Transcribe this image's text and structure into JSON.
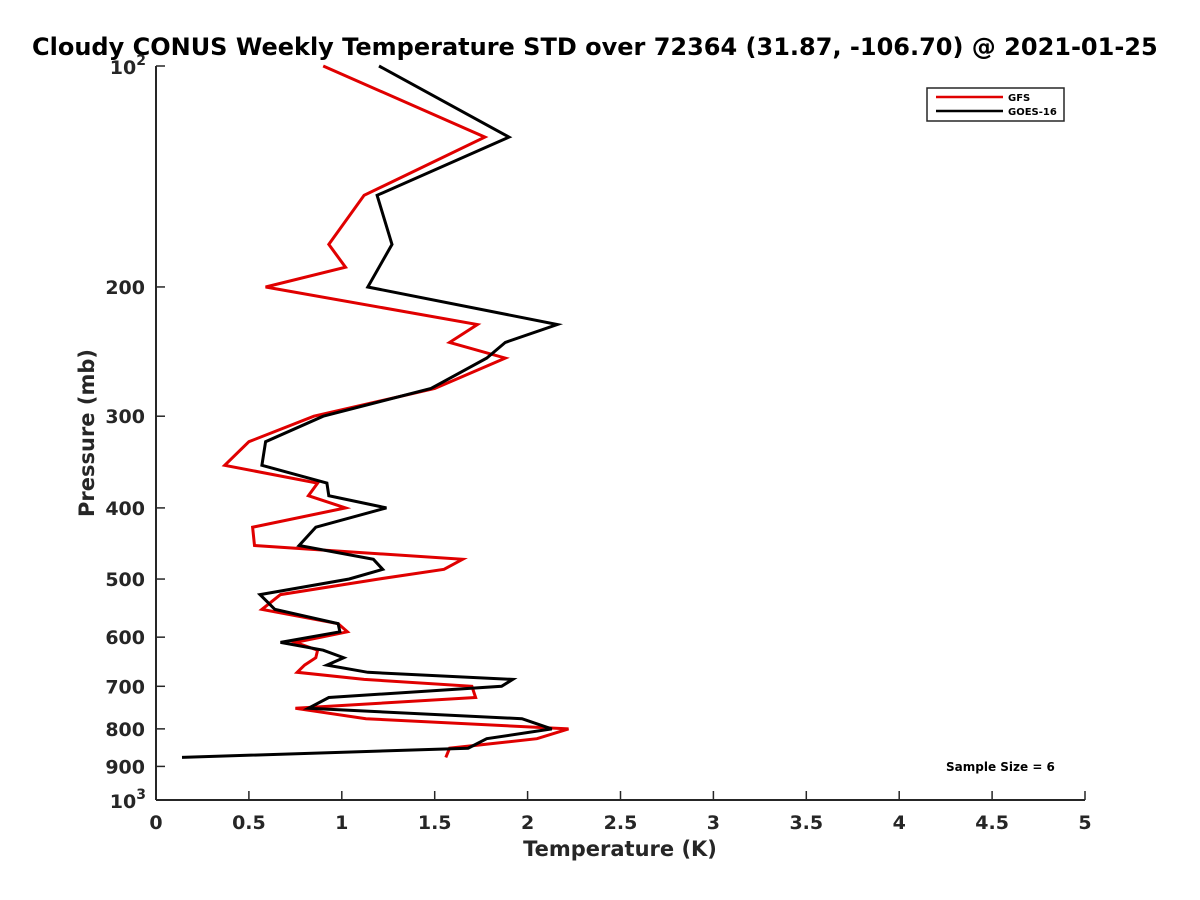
{
  "chart_data": {
    "type": "line",
    "title": "Cloudy CONUS Weekly Temperature STD over 72364 (31.87, -106.70) @ 2021-01-25",
    "xlabel": "Temperature (K)",
    "ylabel": "Pressure (mb)",
    "xlim": [
      0,
      5
    ],
    "ylim": [
      100,
      1000
    ],
    "yscale": "log",
    "yreversed": true,
    "xticks": [
      "0",
      "0.5",
      "1",
      "1.5",
      "2",
      "2.5",
      "3",
      "3.5",
      "4",
      "4.5",
      "5"
    ],
    "yticks": [
      {
        "value": 100,
        "base": "10",
        "exp": "2"
      },
      {
        "value": 200,
        "label": "200"
      },
      {
        "value": 300,
        "label": "300"
      },
      {
        "value": 400,
        "label": "400"
      },
      {
        "value": 500,
        "label": "500"
      },
      {
        "value": 600,
        "label": "600"
      },
      {
        "value": 700,
        "label": "700"
      },
      {
        "value": 800,
        "label": "800"
      },
      {
        "value": 900,
        "label": "900"
      },
      {
        "value": 1000,
        "base": "10",
        "exp": "3"
      }
    ],
    "grid": false,
    "legend_position": "top-right",
    "annotation": "Sample Size = 6",
    "series": [
      {
        "name": "GFS",
        "color": "#e00000",
        "points": [
          [
            0.9,
            100
          ],
          [
            1.77,
            125
          ],
          [
            1.12,
            150
          ],
          [
            0.93,
            175
          ],
          [
            1.02,
            188
          ],
          [
            0.59,
            200
          ],
          [
            1.73,
            225
          ],
          [
            1.58,
            238
          ],
          [
            1.88,
            250
          ],
          [
            1.5,
            275
          ],
          [
            0.85,
            300
          ],
          [
            0.5,
            325
          ],
          [
            0.37,
            350
          ],
          [
            0.87,
            370
          ],
          [
            0.82,
            385
          ],
          [
            1.02,
            400
          ],
          [
            0.52,
            425
          ],
          [
            0.53,
            450
          ],
          [
            1.65,
            470
          ],
          [
            1.55,
            485
          ],
          [
            1.2,
            500
          ],
          [
            0.67,
            525
          ],
          [
            0.57,
            550
          ],
          [
            0.98,
            575
          ],
          [
            1.03,
            590
          ],
          [
            0.75,
            610
          ],
          [
            0.87,
            625
          ],
          [
            0.86,
            640
          ],
          [
            0.8,
            655
          ],
          [
            0.76,
            670
          ],
          [
            1.12,
            685
          ],
          [
            1.7,
            700
          ],
          [
            1.72,
            725
          ],
          [
            0.75,
            750
          ],
          [
            1.13,
            775
          ],
          [
            2.22,
            800
          ],
          [
            2.05,
            825
          ],
          [
            1.58,
            850
          ],
          [
            1.56,
            875
          ]
        ]
      },
      {
        "name": "GOES-16",
        "color": "#000000",
        "points": [
          [
            1.2,
            100
          ],
          [
            1.9,
            125
          ],
          [
            1.19,
            150
          ],
          [
            1.27,
            175
          ],
          [
            1.14,
            200
          ],
          [
            2.16,
            225
          ],
          [
            1.88,
            238
          ],
          [
            1.78,
            250
          ],
          [
            1.48,
            275
          ],
          [
            0.9,
            300
          ],
          [
            0.59,
            325
          ],
          [
            0.57,
            350
          ],
          [
            0.92,
            370
          ],
          [
            0.93,
            385
          ],
          [
            1.24,
            400
          ],
          [
            0.86,
            425
          ],
          [
            0.77,
            450
          ],
          [
            1.17,
            470
          ],
          [
            1.22,
            485
          ],
          [
            1.04,
            500
          ],
          [
            0.56,
            525
          ],
          [
            0.64,
            550
          ],
          [
            0.98,
            575
          ],
          [
            0.99,
            590
          ],
          [
            0.67,
            610
          ],
          [
            0.9,
            625
          ],
          [
            1.01,
            640
          ],
          [
            0.92,
            655
          ],
          [
            1.14,
            670
          ],
          [
            1.92,
            685
          ],
          [
            1.86,
            700
          ],
          [
            0.93,
            725
          ],
          [
            0.82,
            750
          ],
          [
            1.97,
            775
          ],
          [
            2.13,
            800
          ],
          [
            1.78,
            825
          ],
          [
            1.68,
            850
          ],
          [
            0.14,
            875
          ]
        ]
      }
    ]
  }
}
